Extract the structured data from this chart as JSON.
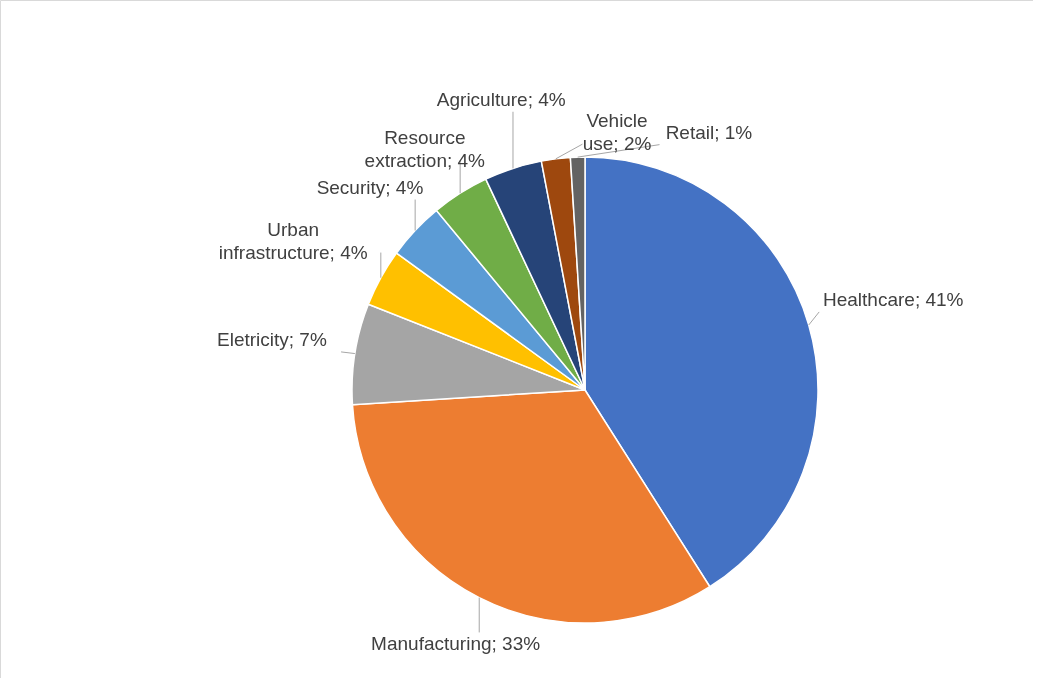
{
  "chart_data": {
    "type": "pie",
    "categories": [
      "Healthcare",
      "Manufacturing",
      "Eletricity",
      "Urban infrastructure",
      "Security",
      "Resource extraction",
      "Agriculture",
      "Vehicle use",
      "Retail"
    ],
    "values": [
      41,
      33,
      7,
      4,
      4,
      4,
      4,
      2,
      1
    ],
    "colors": [
      "#4472c4",
      "#ed7d31",
      "#a5a5a5",
      "#ffc000",
      "#5b9bd5",
      "#70ad47",
      "#264478",
      "#9e480e",
      "#636363"
    ],
    "value_labels": [
      "41%",
      "33%",
      "7%",
      "4%",
      "4%",
      "4%",
      "4%",
      "2%",
      "1%"
    ]
  }
}
